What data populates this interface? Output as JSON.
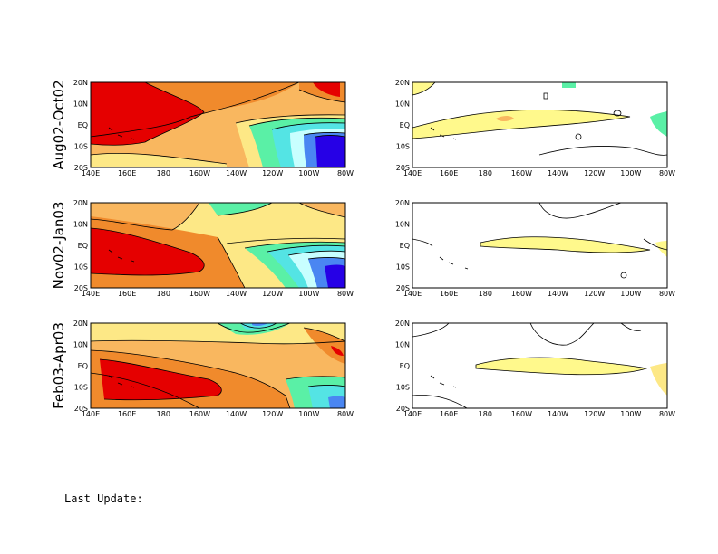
{
  "rows": [
    {
      "label": "Aug02-Oct02"
    },
    {
      "label": "Nov02-Jan03"
    },
    {
      "label": "Feb03-Apr03"
    }
  ],
  "axes": {
    "lon_ticks": [
      "140E",
      "160E",
      "180",
      "160W",
      "140W",
      "120W",
      "100W",
      "80W"
    ],
    "lat_ticks": [
      "20N",
      "10N",
      "EQ",
      "10S",
      "20S"
    ]
  },
  "colors": {
    "deep_red": "#e50000",
    "orange": "#f08a2c",
    "light_orange": "#f9b75f",
    "yellow": "#fde886",
    "pale_yellow": "#fff98c",
    "green": "#5af0a6",
    "cyan": "#54e4e4",
    "light_cyan": "#c8ffff",
    "blue": "#4a86f2",
    "deep_blue": "#2600e6"
  },
  "footer": {
    "last_update": "Last Update:"
  }
}
